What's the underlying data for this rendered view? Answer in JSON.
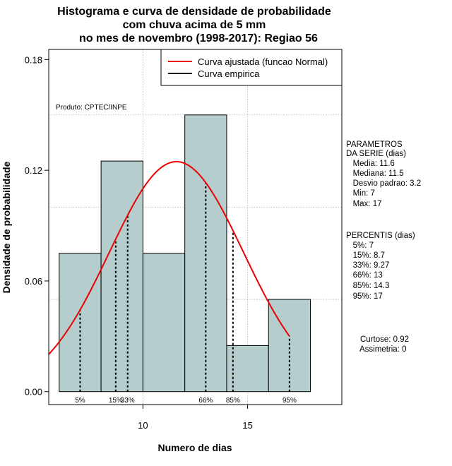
{
  "chart_data": {
    "type": "bar",
    "title": [
      "Histograma e curva de densidade de probabilidade",
      "com chuva acima de 5 mm",
      "no mes de novembro (1998-2017): Regiao 56"
    ],
    "xlabel": "Numero de dias",
    "ylabel": "Densidade de probabilidade",
    "xlim": [
      5.5,
      19.5
    ],
    "ylim": [
      -0.007,
      0.1855
    ],
    "x_ticks": [
      10,
      15
    ],
    "y_ticks": [
      0.0,
      0.06,
      0.12,
      0.18
    ],
    "y_tick_labels": [
      "0.00",
      "0.06",
      "0.12",
      "0.18"
    ],
    "grid": true,
    "grid_x": [
      10,
      15
    ],
    "grid_y": [
      0.05,
      0.1,
      0.15
    ],
    "bins": [
      {
        "from": 6,
        "to": 8,
        "density": 0.075
      },
      {
        "from": 8,
        "to": 10,
        "density": 0.125
      },
      {
        "from": 10,
        "to": 12,
        "density": 0.075
      },
      {
        "from": 12,
        "to": 14,
        "density": 0.15
      },
      {
        "from": 14,
        "to": 16,
        "density": 0.025
      },
      {
        "from": 16,
        "to": 18,
        "density": 0.05
      }
    ],
    "normal_curve": {
      "mean": 11.6,
      "sd": 3.2,
      "x_start": 5.5,
      "x_end": 17
    },
    "percentile_lines": [
      {
        "label": "5%",
        "x": 7
      },
      {
        "label": "15%",
        "x": 8.7
      },
      {
        "label": "33%",
        "x": 9.27
      },
      {
        "label": "66%",
        "x": 13
      },
      {
        "label": "85%",
        "x": 14.3
      },
      {
        "label": "95%",
        "x": 17
      }
    ],
    "legend": {
      "position": "top-right",
      "entries": [
        {
          "label": "Curva ajustada (funcao Normal)",
          "color": "#ee0000"
        },
        {
          "label": "Curva empirica",
          "color": "#000000"
        }
      ]
    },
    "annotation": "Produto: CPTEC/INPE",
    "colors": {
      "bar_fill": "#b5cdcd",
      "curve": "#ee0000",
      "grid": "#b0b0b0"
    }
  },
  "side_panel": {
    "parametros": [
      "PARAMETROS",
      "DA SERIE (dias)",
      "   Media: 11.6",
      "   Mediana: 11.5",
      "   Desvio padrao: 3.2",
      "   Min: 7",
      "   Max: 17"
    ],
    "percentis": [
      "PERCENTIS (dias)",
      "   5%: 7",
      "   15%: 8.7",
      "   33%: 9.27",
      "   66%: 13",
      "   85%: 14.3",
      "   95%: 17"
    ],
    "curtose": "Curtose: 0.92",
    "assimetria": "Assimetria: 0"
  }
}
